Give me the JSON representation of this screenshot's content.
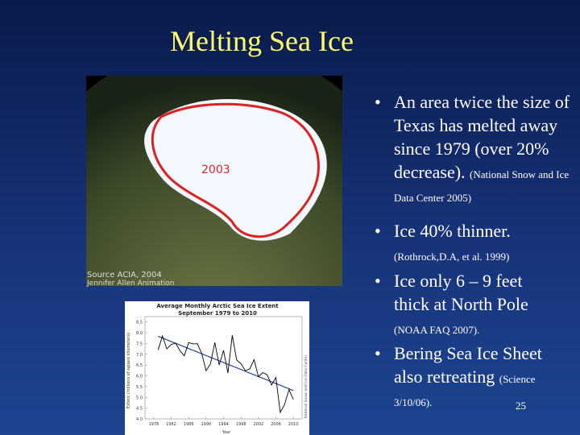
{
  "slide": {
    "title": "Melting Sea Ice",
    "bullets": [
      {
        "text": "An area twice the  size of Texas has melted away since 1979 (over 20% decrease).",
        "source": "(National Snow and Ice Data Center 2005)"
      },
      {
        "text": "Ice 40% thinner.",
        "source": "(Rothrock,D.A, et al. 1999)"
      },
      {
        "text": "Ice only 6 – 9 feet thick at North Pole",
        "source": "(NOAA FAQ 2007)."
      },
      {
        "text": "Bering Sea Ice Sheet also retreating",
        "source": "(Science 3/10/06)."
      }
    ],
    "page_number": "25"
  },
  "globe": {
    "year_label": "2003",
    "credits": [
      "Source ACIA, 2004",
      "Jennifer Allen Animation"
    ]
  },
  "chart_data": {
    "type": "line",
    "title": "Average Monthly Arctic Sea Ice Extent",
    "subtitle": "September 1979 to 2010",
    "xlabel": "Year",
    "ylabel": "Extent (millions of square kilometers)",
    "note": "National Snow and Ice Data Center",
    "x": [
      1979,
      1980,
      1981,
      1982,
      1983,
      1984,
      1985,
      1986,
      1987,
      1988,
      1989,
      1990,
      1991,
      1992,
      1993,
      1994,
      1995,
      1996,
      1997,
      1998,
      1999,
      2000,
      2001,
      2002,
      2003,
      2004,
      2005,
      2006,
      2007,
      2008,
      2009,
      2010
    ],
    "values": [
      7.2,
      7.85,
      7.25,
      7.45,
      7.52,
      7.17,
      6.93,
      7.54,
      7.48,
      7.49,
      7.04,
      6.24,
      6.55,
      7.55,
      6.5,
      7.18,
      6.13,
      7.88,
      6.74,
      6.56,
      6.24,
      6.32,
      6.75,
      5.96,
      6.15,
      6.05,
      5.57,
      5.92,
      4.3,
      4.68,
      5.36,
      4.9
    ],
    "color": "#000000",
    "trend_color": "#2040a0",
    "xlim": [
      1976,
      2012
    ],
    "xticks": [
      1978,
      1982,
      1986,
      1990,
      1994,
      1998,
      2002,
      2006,
      2010
    ],
    "ylim": [
      4,
      8.75
    ],
    "yticks": [
      {
        "value": 4,
        "label": "4.0"
      },
      4.5,
      {
        "value": 5,
        "label": "5.0"
      },
      5.5,
      {
        "value": 6,
        "label": "6.0"
      },
      6.5,
      {
        "value": 7,
        "label": "7.0"
      },
      7.5,
      {
        "value": 8,
        "label": "8.0"
      },
      8.5
    ]
  }
}
